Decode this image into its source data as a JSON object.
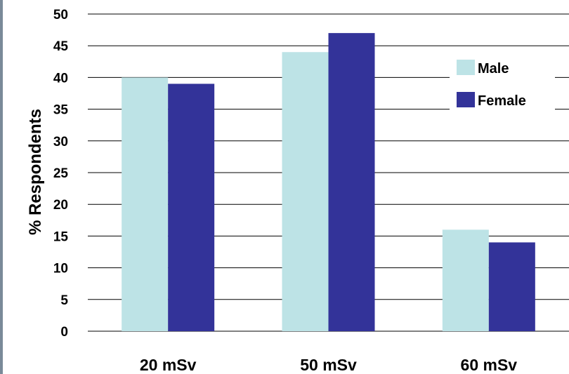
{
  "chart_data": {
    "type": "bar",
    "categories": [
      "20 mSv",
      "50 mSv",
      "60 mSv"
    ],
    "series": [
      {
        "name": "Male",
        "values": [
          40,
          44,
          16
        ],
        "color": "#bde3e6"
      },
      {
        "name": "Female",
        "values": [
          39,
          47,
          14
        ],
        "color": "#333399"
      }
    ],
    "ylabel": "% Respondents",
    "xlabel": "",
    "title": "",
    "ylim": [
      0,
      50
    ],
    "yticks": [
      0,
      5,
      10,
      15,
      20,
      25,
      30,
      35,
      40,
      45,
      50
    ],
    "grid": true,
    "legend_position": "top-right",
    "colors": {
      "grid": "#000000",
      "frame": "#7a8a99"
    }
  }
}
